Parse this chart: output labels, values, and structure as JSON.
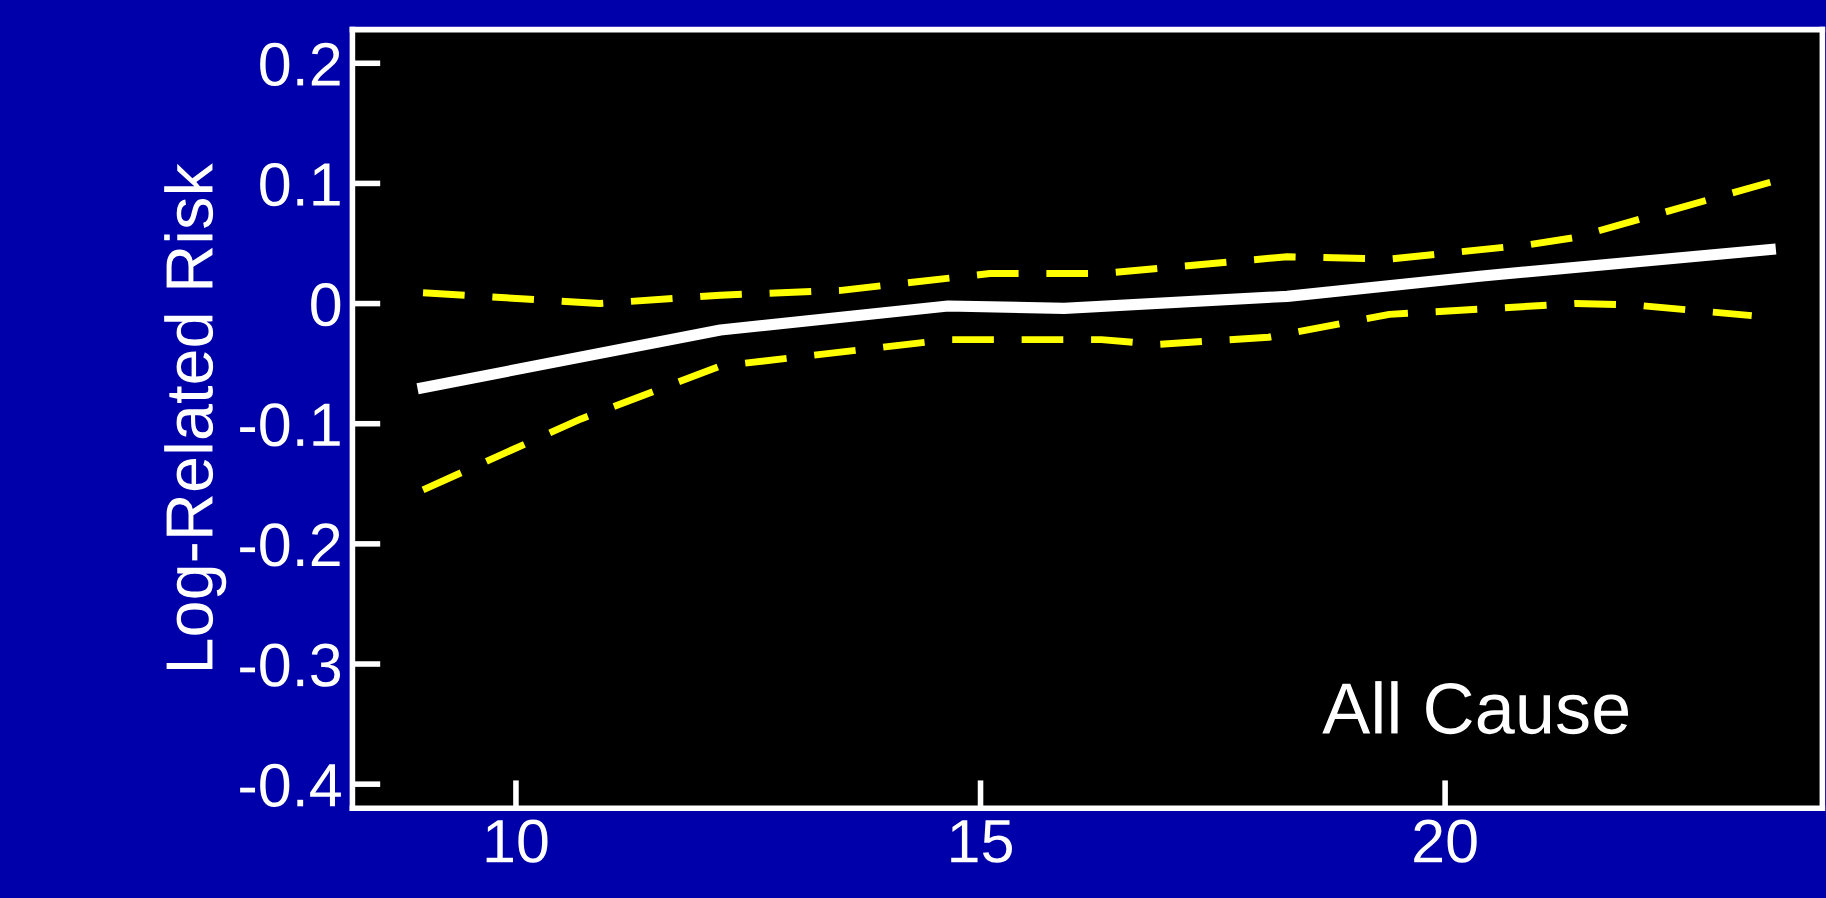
{
  "chart_data": {
    "type": "line",
    "ylabel": "Log-Related Risk",
    "annotations": [
      "All Cause"
    ],
    "xlim": [
      8.24,
      24.06
    ],
    "xticks": [
      10,
      15,
      20
    ],
    "ylim": [
      -0.42,
      0.228
    ],
    "yticks": [
      0.2,
      0.1,
      0,
      -0.1,
      -0.2,
      -0.3,
      -0.4
    ],
    "grid": false,
    "legend": false,
    "marker": "none",
    "series": [
      {
        "color": "#ffffff",
        "line_style": "solid",
        "x": [
          9.0,
          12.2,
          14.65,
          15.9,
          18.3,
          20.4,
          23.5
        ],
        "values": [
          -0.07,
          -0.022,
          -0.002,
          -0.004,
          0.006,
          0.023,
          0.045
        ]
      },
      {
        "color": "#ffff00",
        "line_style": "dashed",
        "x": [
          9.0,
          10.9,
          12.2,
          13.5,
          15.1,
          16.3,
          18.3,
          19.4,
          20.9,
          21.4,
          23.5
        ],
        "values": [
          0.009,
          0.0,
          0.007,
          0.011,
          0.025,
          0.025,
          0.039,
          0.037,
          0.049,
          0.055,
          0.101
        ]
      },
      {
        "color": "#ffff00",
        "line_style": "dashed",
        "x": [
          9.0,
          10.7,
          12.2,
          14.65,
          16.3,
          16.9,
          18.1,
          19.4,
          21.4,
          22.0,
          23.3
        ],
        "values": [
          -0.155,
          -0.096,
          -0.052,
          -0.03,
          -0.03,
          -0.034,
          -0.028,
          -0.009,
          0.0,
          -0.001,
          -0.01
        ]
      }
    ]
  }
}
